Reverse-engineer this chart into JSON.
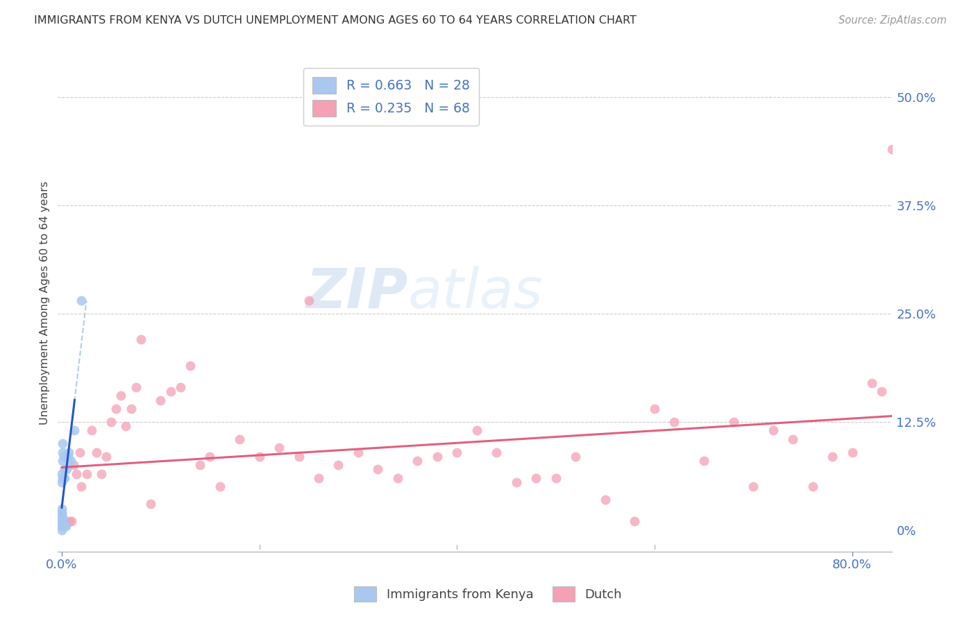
{
  "title": "IMMIGRANTS FROM KENYA VS DUTCH UNEMPLOYMENT AMONG AGES 60 TO 64 YEARS CORRELATION CHART",
  "source": "Source: ZipAtlas.com",
  "ylabel": "Unemployment Among Ages 60 to 64 years",
  "y_tick_values": [
    0.0,
    0.125,
    0.25,
    0.375,
    0.5
  ],
  "y_tick_labels": [
    "0%",
    "12.5%",
    "25.0%",
    "37.5%",
    "50.0%"
  ],
  "x_tick_values": [
    0.0,
    0.8
  ],
  "x_tick_labels": [
    "0.0%",
    "80.0%"
  ],
  "xlim": [
    -0.004,
    0.84
  ],
  "ylim": [
    -0.025,
    0.55
  ],
  "title_color": "#333333",
  "axis_color": "#4472c4",
  "source_color": "#999999",
  "kenya_color": "#a8c8f0",
  "dutch_color": "#f4a0b5",
  "kenya_line_color": "#2255cc",
  "dutch_line_color": "#e06080",
  "kenya_dash_color": "#a0c0e0",
  "legend_kenya_label": "R = 0.663   N = 28",
  "legend_dutch_label": "R = 0.235   N = 68",
  "legend_bottom_kenya": "Immigrants from Kenya",
  "legend_bottom_dutch": "Dutch",
  "watermark_zip": "ZIP",
  "watermark_atlas": "atlas",
  "kenya_x": [
    0.0,
    0.0,
    0.0,
    0.0,
    0.0,
    0.0,
    0.0,
    0.0,
    0.001,
    0.001,
    0.001,
    0.001,
    0.001,
    0.001,
    0.001,
    0.002,
    0.002,
    0.002,
    0.003,
    0.003,
    0.003,
    0.004,
    0.005,
    0.006,
    0.007,
    0.009,
    0.013,
    0.02
  ],
  "kenya_y": [
    0.0,
    0.005,
    0.01,
    0.015,
    0.02,
    0.025,
    0.055,
    0.065,
    0.005,
    0.01,
    0.015,
    0.06,
    0.08,
    0.09,
    0.1,
    0.005,
    0.06,
    0.085,
    0.005,
    0.06,
    0.07,
    0.005,
    0.07,
    0.085,
    0.09,
    0.08,
    0.115,
    0.265
  ],
  "dutch_x": [
    0.0,
    0.0,
    0.0,
    0.001,
    0.002,
    0.003,
    0.004,
    0.005,
    0.008,
    0.01,
    0.012,
    0.015,
    0.018,
    0.02,
    0.025,
    0.03,
    0.035,
    0.04,
    0.045,
    0.05,
    0.055,
    0.06,
    0.065,
    0.07,
    0.075,
    0.08,
    0.09,
    0.1,
    0.11,
    0.12,
    0.13,
    0.14,
    0.15,
    0.16,
    0.18,
    0.2,
    0.22,
    0.24,
    0.25,
    0.26,
    0.28,
    0.3,
    0.32,
    0.34,
    0.36,
    0.38,
    0.4,
    0.42,
    0.44,
    0.46,
    0.48,
    0.5,
    0.52,
    0.55,
    0.58,
    0.6,
    0.62,
    0.65,
    0.68,
    0.7,
    0.72,
    0.74,
    0.76,
    0.78,
    0.8,
    0.82,
    0.83,
    0.84
  ],
  "dutch_y": [
    0.005,
    0.01,
    0.02,
    0.01,
    0.01,
    0.008,
    0.008,
    0.008,
    0.01,
    0.01,
    0.075,
    0.065,
    0.09,
    0.05,
    0.065,
    0.115,
    0.09,
    0.065,
    0.085,
    0.125,
    0.14,
    0.155,
    0.12,
    0.14,
    0.165,
    0.22,
    0.03,
    0.15,
    0.16,
    0.165,
    0.19,
    0.075,
    0.085,
    0.05,
    0.105,
    0.085,
    0.095,
    0.085,
    0.265,
    0.06,
    0.075,
    0.09,
    0.07,
    0.06,
    0.08,
    0.085,
    0.09,
    0.115,
    0.09,
    0.055,
    0.06,
    0.06,
    0.085,
    0.035,
    0.01,
    0.14,
    0.125,
    0.08,
    0.125,
    0.05,
    0.115,
    0.105,
    0.05,
    0.085,
    0.09,
    0.17,
    0.16,
    0.44
  ]
}
